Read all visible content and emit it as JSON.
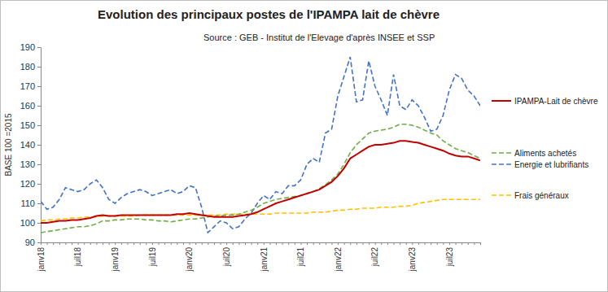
{
  "chart_data": {
    "type": "line",
    "title": "Evolution des principaux postes de l'IPAMPA lait de chèvre",
    "subtitle": "Source : GEB - Institut de l'Elevage d'après INSEE et SSP",
    "y_label": "BASE 100 =2015",
    "categories": [
      "janv18",
      null,
      null,
      null,
      null,
      null,
      "juil18",
      null,
      null,
      null,
      null,
      null,
      "janv19",
      null,
      null,
      null,
      null,
      null,
      "juil19",
      null,
      null,
      null,
      null,
      null,
      "janv20",
      null,
      null,
      null,
      null,
      null,
      "juil20",
      null,
      null,
      null,
      null,
      null,
      "janv21",
      null,
      null,
      null,
      null,
      null,
      "juil21",
      null,
      null,
      null,
      null,
      null,
      "janv22",
      null,
      null,
      null,
      null,
      null,
      "juil22",
      null,
      null,
      null,
      null,
      null,
      "janv23",
      null,
      null,
      null,
      null,
      null,
      "juil23",
      null,
      null,
      null,
      null,
      null
    ],
    "ylim": [
      90,
      190
    ],
    "yticks": [
      90,
      100,
      110,
      120,
      130,
      140,
      150,
      160,
      170,
      180,
      190
    ],
    "grid": false,
    "legend": "right",
    "series": [
      {
        "name": "IPAMPA-Lait de chèvre",
        "color": "#c00000",
        "line_style": "solid",
        "values": [
          100,
          100,
          100.5,
          101,
          101,
          101.5,
          101.5,
          102,
          102.5,
          103.5,
          104,
          103.5,
          103.5,
          104,
          104,
          104,
          104,
          104,
          104,
          104,
          104,
          104,
          104.5,
          104.5,
          105,
          104.5,
          104,
          103.5,
          103,
          103,
          103,
          103,
          103.5,
          104,
          104.5,
          105.5,
          107,
          108.5,
          110,
          111,
          112,
          113,
          114,
          115,
          116,
          117,
          119,
          121,
          124,
          128,
          133,
          135,
          137,
          139,
          140,
          140,
          140.5,
          141,
          142,
          142,
          141.5,
          141,
          140,
          139,
          138,
          137,
          135.5,
          134.5,
          134,
          134,
          133,
          132
        ]
      },
      {
        "name": "Aliments achetés",
        "color": "#70ad47",
        "line_style": "dashed",
        "values": [
          95,
          95.5,
          96,
          96.5,
          97,
          97.5,
          98,
          98,
          98.5,
          99.5,
          101,
          101,
          101.5,
          101.5,
          102,
          102,
          102,
          101.5,
          101.5,
          101,
          101,
          100.5,
          101,
          101.5,
          102,
          102,
          102.5,
          103,
          103.5,
          103.5,
          104,
          104,
          104.5,
          105.5,
          106.5,
          108,
          110,
          111,
          112,
          112.5,
          113,
          113.5,
          114,
          115,
          116,
          117.5,
          119.5,
          122,
          125,
          130,
          136,
          140,
          143,
          146,
          147,
          147.5,
          148,
          149,
          150.5,
          150.5,
          150,
          149,
          147.5,
          146,
          145,
          142,
          140,
          138,
          137,
          136,
          134.5,
          133
        ]
      },
      {
        "name": "Energie et lubrifiants",
        "color": "#4472c4",
        "line_style": "dashed",
        "values": [
          111,
          107,
          108,
          112,
          118,
          117,
          116,
          117,
          120,
          122,
          118,
          112,
          110,
          113,
          115,
          116,
          117,
          116,
          114,
          115,
          116,
          117,
          115,
          116,
          119,
          118,
          108,
          95,
          98,
          101,
          100,
          97,
          98,
          102,
          105,
          110,
          114,
          112,
          116,
          115,
          119,
          119,
          122,
          130,
          133,
          131,
          146,
          148,
          165,
          175,
          185,
          162,
          163,
          183,
          170,
          163,
          155,
          176,
          160,
          158,
          163,
          160,
          154,
          147,
          148,
          155,
          168,
          176,
          174,
          168,
          165,
          160
        ]
      },
      {
        "name": "Frais généraux",
        "color": "#ffc000",
        "line_style": "dashed",
        "values": [
          101,
          101.5,
          101.5,
          102,
          102,
          102.5,
          102.5,
          103,
          103,
          103,
          103.5,
          103.5,
          103.5,
          103.5,
          103.5,
          103.5,
          104,
          104,
          104,
          104,
          104,
          104,
          104,
          104,
          104,
          104,
          104,
          104,
          104,
          104,
          104.5,
          104.5,
          104.5,
          104.5,
          104.5,
          104.5,
          104.5,
          104.5,
          105,
          105,
          105,
          105,
          105,
          105,
          105.5,
          105.5,
          105.5,
          106,
          106.5,
          106.5,
          107,
          107,
          107.5,
          107.5,
          107.5,
          108,
          108,
          108,
          108.5,
          108.5,
          109,
          110,
          110.5,
          111,
          111.5,
          112,
          112,
          112,
          112,
          112,
          112,
          112
        ]
      }
    ]
  }
}
